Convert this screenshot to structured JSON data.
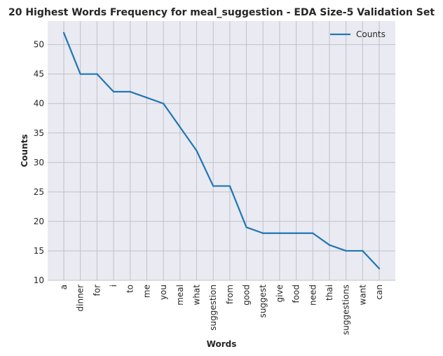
{
  "chart_data": {
    "type": "line",
    "title": "20 Highest Words Frequency for meal_suggestion - EDA Size-5 Validation Set",
    "xlabel": "Words",
    "ylabel": "Counts",
    "categories": [
      "a",
      "dinner",
      "for",
      "i",
      "to",
      "me",
      "you",
      "meal",
      "what",
      "suggestion",
      "from",
      "good",
      "suggest",
      "give",
      "food",
      "need",
      "thai",
      "suggestions",
      "want",
      "can"
    ],
    "series": [
      {
        "name": "Counts",
        "values": [
          52,
          45,
          45,
          42,
          42,
          41,
          40,
          36,
          32,
          26,
          26,
          19,
          18,
          18,
          18,
          18,
          16,
          15,
          15,
          12
        ]
      }
    ],
    "ylim": [
      10,
      54
    ],
    "yticks": [
      10,
      15,
      20,
      25,
      30,
      35,
      40,
      45,
      50
    ],
    "grid": true,
    "legend_position": "top-right",
    "colors": {
      "line": "#1f77b4",
      "plot_background": "#eaeaf2",
      "grid": "#c0c0c8"
    }
  }
}
